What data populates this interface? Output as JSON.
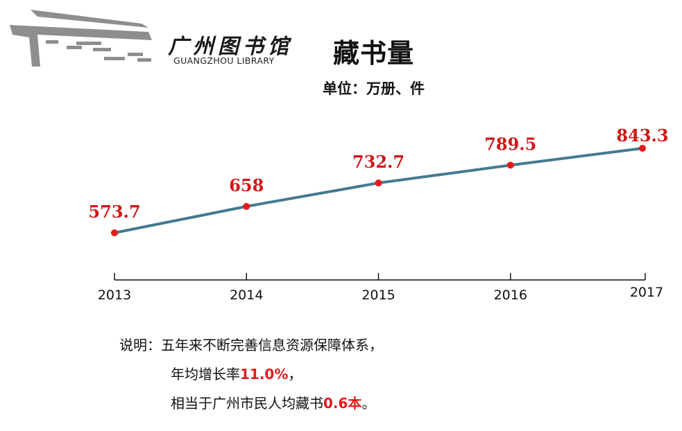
{
  "logo": {
    "name_cn": "广州图书馆",
    "name_en": "GUANGZHOU LIBRARY"
  },
  "header": {
    "title": "藏书量",
    "unit": "单位：万册、件"
  },
  "colors": {
    "line": "#447a92",
    "point": "#e41b1b",
    "label": "#d01818",
    "axis": "#111111"
  },
  "chart_data": {
    "type": "line",
    "title": "藏书量",
    "subtitle": "单位：万册、件",
    "xlabel": "",
    "ylabel": "",
    "categories": [
      "2013",
      "2014",
      "2015",
      "2016",
      "2017"
    ],
    "series": [
      {
        "name": "藏书量",
        "values": [
          573.7,
          658,
          732.7,
          789.5,
          843.3
        ]
      }
    ],
    "data_labels": [
      "573.7",
      "658",
      "732.7",
      "789.5",
      "843.3"
    ],
    "ylim": [
      450,
      900
    ],
    "grid": false,
    "legend": "none"
  },
  "note": {
    "prefix": "说明：",
    "line1": "五年来不断完善信息资源保障体系，",
    "line2_text": "年均增长率",
    "line2_value": "11.0%",
    "line2_suffix": "，",
    "line3_text": "相当于广州市民人均藏书",
    "line3_value": "0.6本",
    "line3_suffix": "。"
  }
}
